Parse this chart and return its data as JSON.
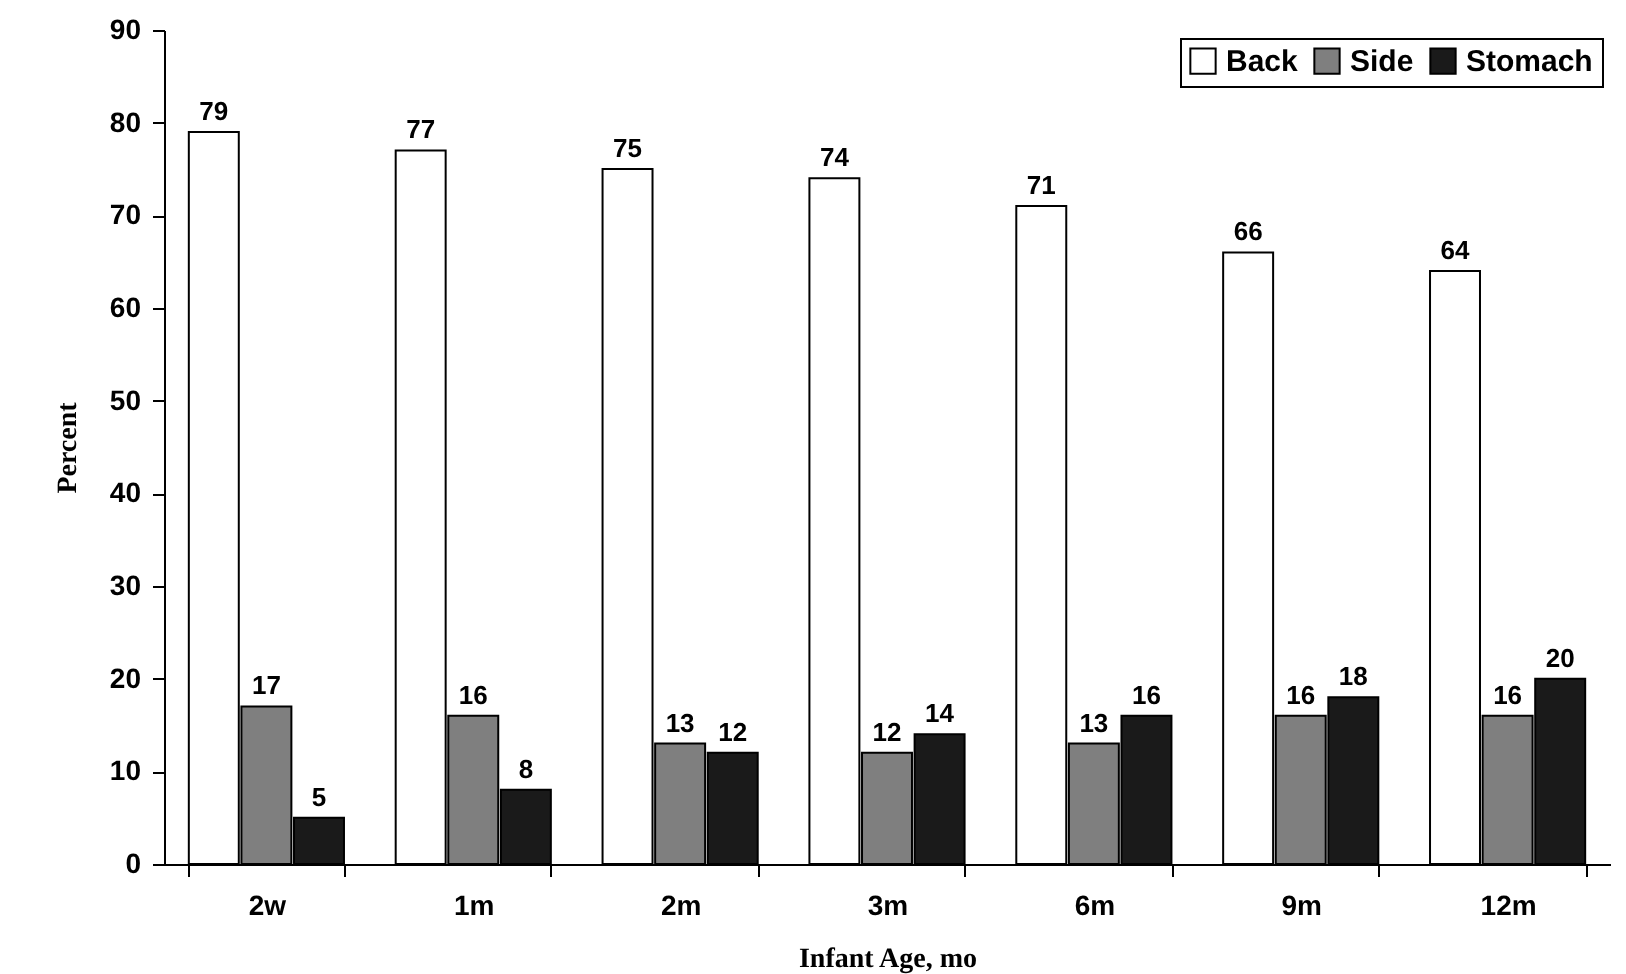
{
  "chart_data": {
    "type": "bar",
    "xlabel": "Infant Age, mo",
    "ylabel": "Percent",
    "categories": [
      "2w",
      "1m",
      "2m",
      "3m",
      "6m",
      "9m",
      "12m"
    ],
    "series": [
      {
        "name": "Back",
        "color": "#ffffff",
        "values": [
          79,
          77,
          75,
          74,
          71,
          66,
          64
        ]
      },
      {
        "name": "Side",
        "color": "#7f7f7f",
        "values": [
          17,
          16,
          13,
          12,
          13,
          16,
          16
        ]
      },
      {
        "name": "Stomach",
        "color": "#1a1a1a",
        "values": [
          5,
          8,
          12,
          14,
          16,
          18,
          20
        ]
      }
    ],
    "ylim": [
      0,
      90
    ],
    "yticks": [
      0,
      10,
      20,
      30,
      40,
      50,
      60,
      70,
      80,
      90
    ],
    "data_labels": true,
    "legend": "top right"
  }
}
